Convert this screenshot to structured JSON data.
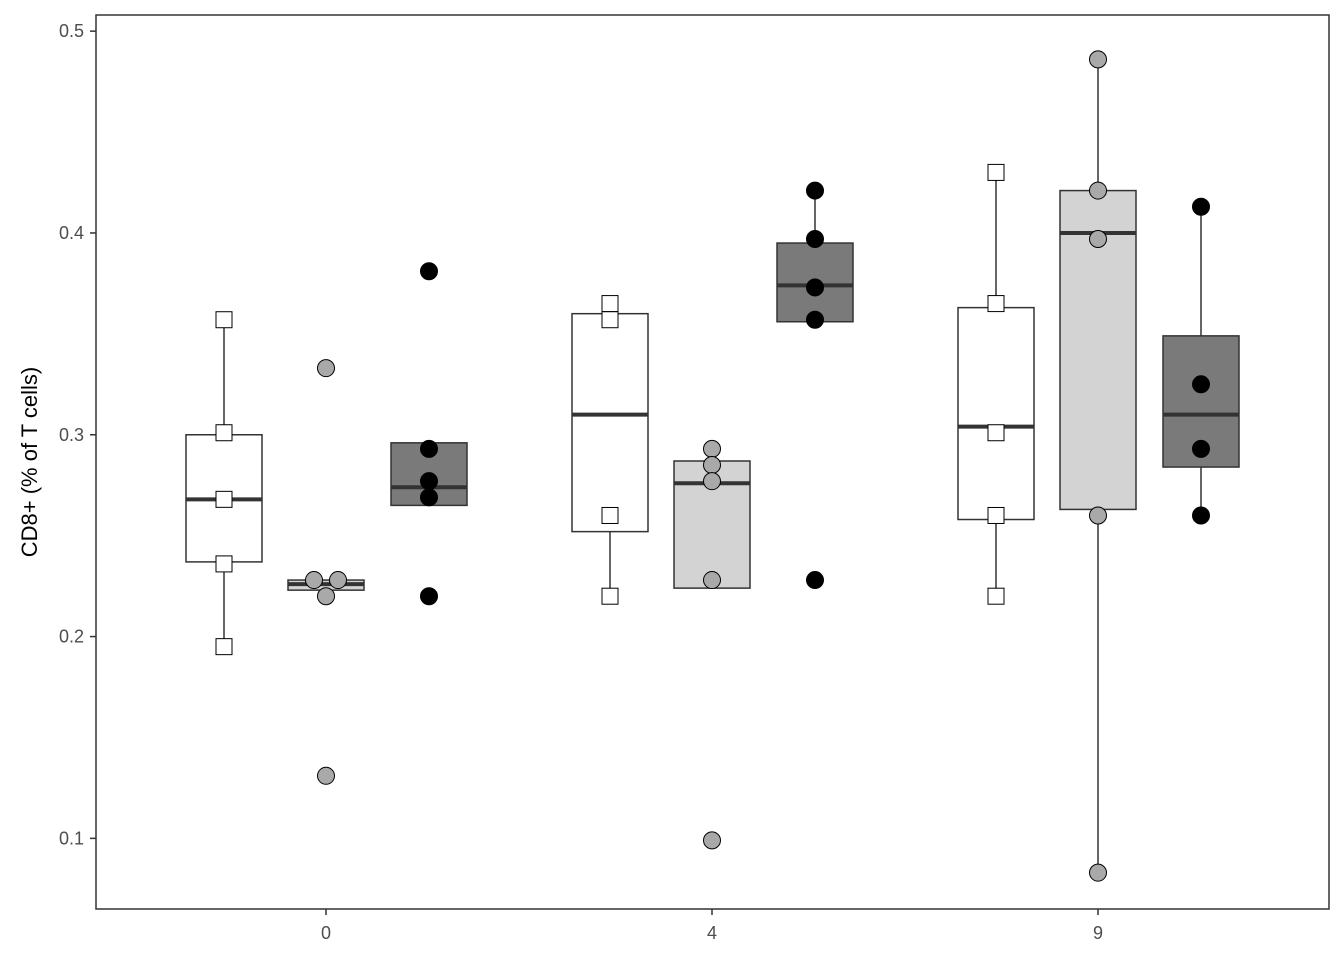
{
  "chart_data": {
    "type": "box",
    "title": "",
    "xlabel": "",
    "ylabel": "CD8+ (% of T cells)",
    "ylim": [
      0.065,
      0.508
    ],
    "y_ticks": [
      "0.1",
      "0.2",
      "0.3",
      "0.4",
      "0.5"
    ],
    "y_tick_values": [
      0.1,
      0.2,
      0.3,
      0.4,
      0.5
    ],
    "categories": [
      "0",
      "4",
      "9"
    ],
    "grid": false,
    "legend": "none",
    "series": [
      {
        "fill": "#ffffff",
        "point_shape": "square",
        "point_fill": "#ffffff",
        "boxes": [
          {
            "category": "0",
            "min": 0.195,
            "q1": 0.237,
            "median": 0.268,
            "q3": 0.3,
            "max": 0.357,
            "points": [
              0.357,
              0.301,
              0.268,
              0.236,
              0.195
            ]
          },
          {
            "category": "4",
            "min": 0.22,
            "q1": 0.252,
            "median": 0.31,
            "q3": 0.36,
            "max": 0.365,
            "points": [
              0.365,
              0.357,
              0.26,
              0.22
            ]
          },
          {
            "category": "9",
            "min": 0.22,
            "q1": 0.258,
            "median": 0.304,
            "q3": 0.363,
            "max": 0.43,
            "points": [
              0.43,
              0.365,
              0.301,
              0.26,
              0.22
            ]
          }
        ]
      },
      {
        "fill": "#d3d3d3",
        "point_shape": "circle",
        "point_fill": "#a9a9a9",
        "boxes": [
          {
            "category": "0",
            "min": 0.223,
            "q1": 0.223,
            "median": 0.226,
            "q3": 0.228,
            "max": 0.228,
            "points": [
              0.333,
              0.228,
              0.228,
              0.22,
              0.131
            ]
          },
          {
            "category": "4",
            "min": 0.224,
            "q1": 0.224,
            "median": 0.276,
            "q3": 0.287,
            "max": 0.287,
            "points": [
              0.293,
              0.285,
              0.277,
              0.228,
              0.099
            ]
          },
          {
            "category": "9",
            "min": 0.083,
            "q1": 0.263,
            "median": 0.4,
            "q3": 0.421,
            "max": 0.486,
            "points": [
              0.486,
              0.421,
              0.397,
              0.26,
              0.083
            ]
          }
        ]
      },
      {
        "fill": "#7a7a7a",
        "point_shape": "circle",
        "point_fill": "#000000",
        "boxes": [
          {
            "category": "0",
            "min": 0.265,
            "q1": 0.265,
            "median": 0.274,
            "q3": 0.296,
            "max": 0.296,
            "points": [
              0.381,
              0.293,
              0.277,
              0.269,
              0.22
            ]
          },
          {
            "category": "4",
            "min": 0.356,
            "q1": 0.356,
            "median": 0.374,
            "q3": 0.395,
            "max": 0.421,
            "points": [
              0.421,
              0.397,
              0.373,
              0.357,
              0.228
            ]
          },
          {
            "category": "9",
            "min": 0.26,
            "q1": 0.284,
            "median": 0.31,
            "q3": 0.349,
            "max": 0.413,
            "points": [
              0.413,
              0.325,
              0.293,
              0.26
            ]
          }
        ]
      }
    ]
  }
}
